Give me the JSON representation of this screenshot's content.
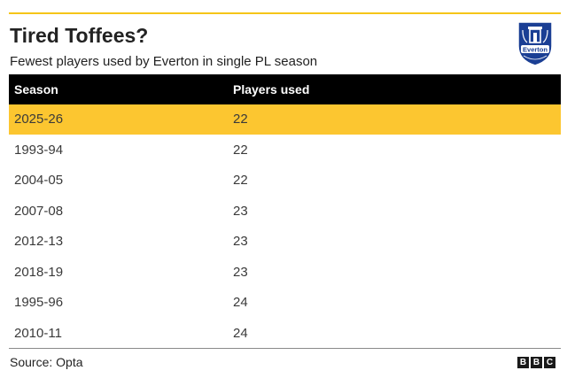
{
  "header": {
    "title": "Tired Toffees?",
    "subtitle": "Fewest players used by Everton in single PL season",
    "crest_icon": "everton-crest",
    "crest_text": "Everton"
  },
  "table": {
    "columns": [
      "Season",
      "Players used"
    ],
    "rows": [
      {
        "season": "2025-26",
        "players": "22",
        "highlight": true
      },
      {
        "season": "1993-94",
        "players": "22",
        "highlight": false
      },
      {
        "season": "2004-05",
        "players": "22",
        "highlight": false
      },
      {
        "season": "2007-08",
        "players": "23",
        "highlight": false
      },
      {
        "season": "2012-13",
        "players": "23",
        "highlight": false
      },
      {
        "season": "2018-19",
        "players": "23",
        "highlight": false
      },
      {
        "season": "1995-96",
        "players": "24",
        "highlight": false
      },
      {
        "season": "2010-11",
        "players": "24",
        "highlight": false
      }
    ]
  },
  "footer": {
    "source": "Source: Opta",
    "logo_letters": [
      "B",
      "B",
      "C"
    ]
  },
  "colors": {
    "accent": "#fcc630",
    "header_bg": "#000000",
    "crest_blue": "#1b3f94"
  },
  "chart_data": {
    "type": "table",
    "title": "Tired Toffees?",
    "subtitle": "Fewest players used by Everton in single PL season",
    "columns": [
      "Season",
      "Players used"
    ],
    "categories": [
      "2025-26",
      "1993-94",
      "2004-05",
      "2007-08",
      "2012-13",
      "2018-19",
      "1995-96",
      "2010-11"
    ],
    "values": [
      22,
      22,
      22,
      23,
      23,
      23,
      24,
      24
    ],
    "highlighted_category": "2025-26"
  }
}
